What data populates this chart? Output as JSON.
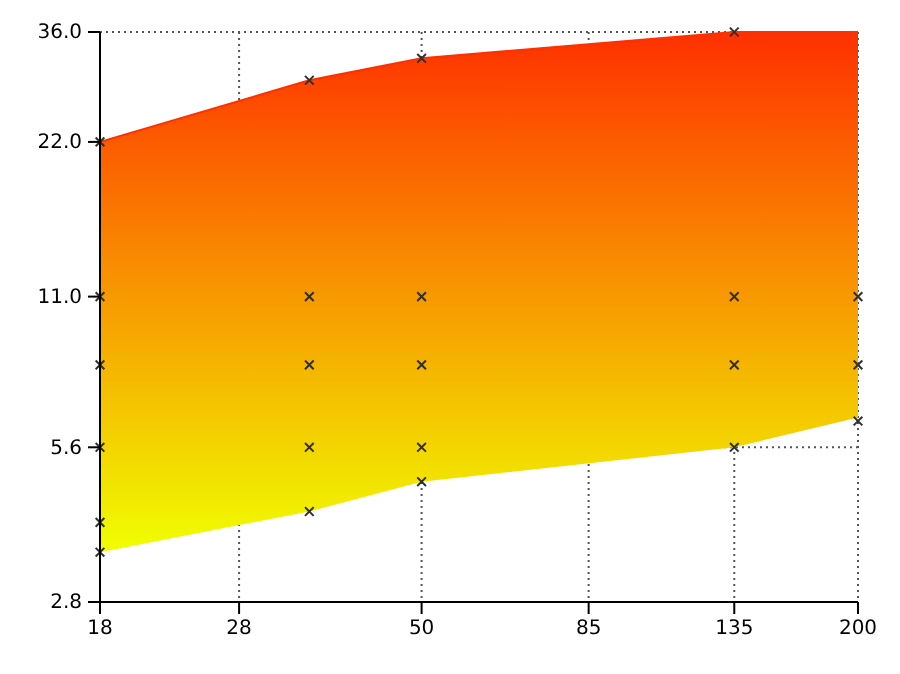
{
  "chart_data": {
    "type": "scatter",
    "log": "xy",
    "grid": true,
    "marker": "cross",
    "xlim": [
      18,
      200
    ],
    "xticks": [
      18,
      28,
      50,
      85,
      135,
      200
    ],
    "ylim": [
      2.8,
      36
    ],
    "yticks": [
      2.8,
      5.6,
      {
        "value": 11,
        "label": "11.0"
      },
      {
        "value": 22,
        "label": "22.0"
      },
      {
        "value": 36,
        "label": "36.0"
      }
    ],
    "series": [
      {
        "type": "line",
        "marker": "none",
        "color": "#ff3000",
        "x": [
          18,
          35,
          50,
          135,
          200
        ],
        "values": [
          22,
          29,
          32,
          36,
          36
        ],
        "lower": [
          3.5,
          4.2,
          4.8,
          5.6,
          6.4
        ],
        "upper": [
          22,
          29,
          32,
          36,
          36
        ]
      },
      {
        "color": "#303030",
        "x": [
          18,
          18,
          18,
          18,
          18,
          18,
          35,
          35,
          35,
          35,
          35,
          50,
          50,
          50,
          50,
          50,
          135,
          135,
          135,
          135,
          200,
          200,
          200
        ],
        "values": [
          22,
          11,
          8.1,
          5.6,
          4.0,
          3.5,
          29,
          11,
          8.1,
          5.6,
          4.2,
          32,
          11,
          8.1,
          5.6,
          4.8,
          36,
          11,
          8.1,
          5.6,
          11,
          8.1,
          6.3
        ]
      }
    ]
  }
}
